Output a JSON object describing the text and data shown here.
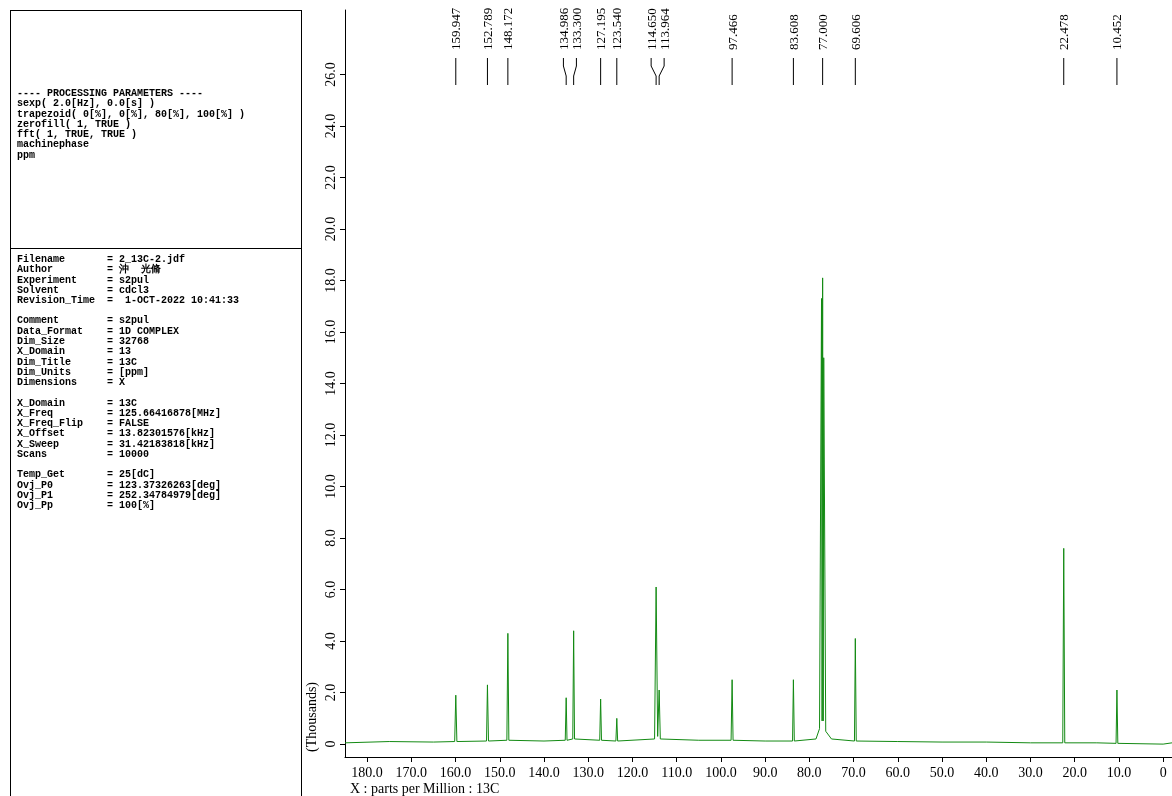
{
  "chart_data": [
    {
      "type": "other",
      "annotations": [
        "---- PROCESSING PARAMETERS ----\nsexp( 2.0[Hz], 0.0[s] )\ntrapezoid( 0[%], 0[%], 80[%], 100[%] )\nzerofill( 1, TRUE )\nfft( 1, TRUE, TRUE )\nmachinephase\nppm",
        "Filename       = 2_13C-2.jdf\nAuthor         = 沖  光脩\nExperiment     = s2pul\nSolvent        = cdcl3\nRevision_Time  =  1-OCT-2022 10:41:33",
        "Comment        = s2pul\nData_Format    = 1D COMPLEX\nDim_Size       = 32768\nX_Domain       = 13\nDim_Title      = 13C\nDim_Units      = [ppm]\nDimensions     = X",
        "X_Domain       = 13C\nX_Freq         = 125.66416878[MHz]\nX_Freq_Flip    = FALSE\nX_Offset       = 13.82301576[kHz]\nX_Sweep        = 31.42183818[kHz]\nScans          = 10000",
        "Temp_Get       = 25[dC]\nOvj_P0         = 123.37326263[deg]\nOvj_P1         = 252.34784979[deg]\nOvj_Pp         = 100[%]"
      ]
    },
    {
      "type": "line",
      "xlabel": "X : parts per Million : 13C",
      "ylabel": "(Thousands)",
      "marker": "none",
      "xlim": [
        185,
        -2
      ],
      "ylim": [
        -0.5,
        28.5
      ],
      "xticks": [
        {
          "value": 180,
          "label": "180.0"
        },
        {
          "value": 170,
          "label": "170.0"
        },
        {
          "value": 160,
          "label": "160.0"
        },
        {
          "value": 150,
          "label": "150.0"
        },
        {
          "value": 140,
          "label": "140.0"
        },
        {
          "value": 130,
          "label": "130.0"
        },
        {
          "value": 120,
          "label": "120.0"
        },
        {
          "value": 110,
          "label": "110.0"
        },
        {
          "value": 100,
          "label": "100.0"
        },
        {
          "value": 90,
          "label": "90.0"
        },
        {
          "value": 80,
          "label": "80.0"
        },
        {
          "value": 70,
          "label": "70.0"
        },
        {
          "value": 60,
          "label": "60.0"
        },
        {
          "value": 50,
          "label": "50.0"
        },
        {
          "value": 40,
          "label": "40.0"
        },
        {
          "value": 30,
          "label": "30.0"
        },
        {
          "value": 20,
          "label": "20.0"
        },
        {
          "value": 10,
          "label": "10.0"
        },
        0
      ],
      "yticks": [
        0,
        {
          "value": 2,
          "label": "2.0"
        },
        {
          "value": 4,
          "label": "4.0"
        },
        {
          "value": 6,
          "label": "6.0"
        },
        {
          "value": 8,
          "label": "8.0"
        },
        {
          "value": 10,
          "label": "10.0"
        },
        {
          "value": 12,
          "label": "12.0"
        },
        {
          "value": 14,
          "label": "14.0"
        },
        {
          "value": 16,
          "label": "16.0"
        },
        {
          "value": 18,
          "label": "18.0"
        },
        {
          "value": 20,
          "label": "20.0"
        },
        {
          "value": 22,
          "label": "22.0"
        },
        {
          "value": 24,
          "label": "24.0"
        },
        {
          "value": 26,
          "label": "26.0"
        }
      ],
      "series": [
        {
          "color": "#138a13",
          "x": [
            185,
            175,
            165,
            160.2,
            159.947,
            159.7,
            153.0,
            152.789,
            152.55,
            148.4,
            148.172,
            147.95,
            140,
            135.2,
            134.986,
            134.8,
            133.5,
            133.3,
            133.1,
            127.4,
            127.195,
            127.0,
            123.75,
            123.54,
            123.35,
            115.0,
            114.65,
            114.3,
            113.964,
            113.7,
            105,
            97.7,
            97.466,
            97.25,
            90,
            83.8,
            83.608,
            83.4,
            78.5,
            77.7,
            77.25,
            77.12,
            77.0,
            76.87,
            76.75,
            76.3,
            75,
            69.8,
            69.606,
            69.4,
            60,
            50,
            40,
            30,
            22.7,
            22.478,
            22.25,
            15,
            10.65,
            10.452,
            10.25,
            0,
            -2
          ],
          "values": [
            0.05,
            0.1,
            0.08,
            0.1,
            1.9,
            0.1,
            0.12,
            2.3,
            0.12,
            0.15,
            4.3,
            0.15,
            0.12,
            0.15,
            1.8,
            0.15,
            0.2,
            4.4,
            0.2,
            0.15,
            1.75,
            0.15,
            0.12,
            1.0,
            0.12,
            0.2,
            6.1,
            0.3,
            2.1,
            0.2,
            0.15,
            0.15,
            2.5,
            0.15,
            0.12,
            0.12,
            2.5,
            0.12,
            0.2,
            0.6,
            17.3,
            0.9,
            18.1,
            0.9,
            15.0,
            0.5,
            0.2,
            0.12,
            4.1,
            0.12,
            0.1,
            0.08,
            0.08,
            0.05,
            0.05,
            7.6,
            0.05,
            0.05,
            0.03,
            2.1,
            0.03,
            0.0,
            0.05
          ]
        }
      ],
      "annotations": [
        {
          "text": "159.947",
          "x": 159.947
        },
        {
          "text": "152.789",
          "x": 152.789
        },
        {
          "text": "148.172",
          "x": 148.172
        },
        {
          "text": "134.986",
          "x": 134.986
        },
        {
          "text": "133.300",
          "x": 133.3
        },
        {
          "text": "127.195",
          "x": 127.195
        },
        {
          "text": "123.540",
          "x": 123.54
        },
        {
          "text": "114.650",
          "x": 114.65
        },
        {
          "text": "113.964",
          "x": 113.964
        },
        {
          "text": "97.466",
          "x": 97.466
        },
        {
          "text": "83.608",
          "x": 83.608
        },
        {
          "text": "77.000",
          "x": 77.0
        },
        {
          "text": "69.606",
          "x": 69.606
        },
        {
          "text": "22.478",
          "x": 22.478
        },
        {
          "text": "10.452",
          "x": 10.452
        }
      ]
    }
  ]
}
